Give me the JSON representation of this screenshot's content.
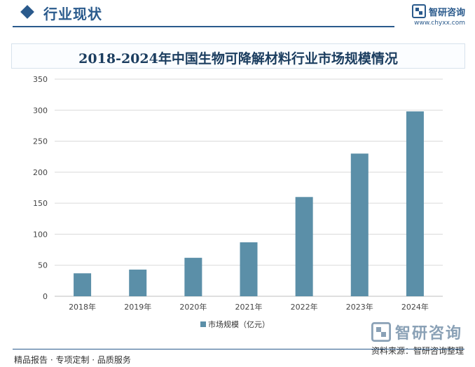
{
  "header": {
    "section_title": "行业现状",
    "brand_name": "智研咨询",
    "brand_url": "www.chyxx.com"
  },
  "chart_data": {
    "type": "bar",
    "title": "2018-2024年中国生物可降解材料行业市场规模情况",
    "categories": [
      "2018年",
      "2019年",
      "2020年",
      "2021年",
      "2022年",
      "2023年",
      "2024年"
    ],
    "series": [
      {
        "name": "市场规模（亿元）",
        "values": [
          37,
          43,
          62,
          87,
          160,
          230,
          298
        ],
        "color": "#5b8fa8"
      }
    ],
    "ylim": [
      0,
      350
    ],
    "yticks": [
      0,
      50,
      100,
      150,
      200,
      250,
      300,
      350
    ],
    "grid": true,
    "legend": "bottom"
  },
  "footer": {
    "left_text": "精品报告 · 专项定制 · 品质服务",
    "source_text": "资料来源：智研咨询整理",
    "brand_name": "智研咨询"
  }
}
